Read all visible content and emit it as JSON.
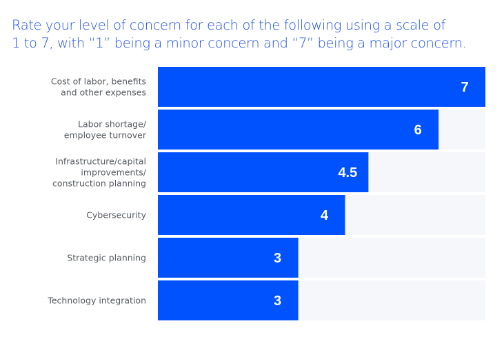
{
  "chart_data": {
    "type": "bar",
    "orientation": "horizontal",
    "title_lines": [
      "Rate your level of concern for each of the following using a scale of",
      "1 to 7, with “1” being a minor concern and “7” being a major concern."
    ],
    "categories": [
      [
        "Cost of labor, benefits",
        "and other expenses"
      ],
      [
        "Labor shortage/",
        "employee turnover"
      ],
      [
        "Infrastructure/capital",
        "improvements/",
        "construction planning"
      ],
      [
        "Cybersecurity"
      ],
      [
        "Strategic planning"
      ],
      [
        "Technology integration"
      ]
    ],
    "values": [
      7,
      6,
      4.5,
      4,
      3,
      3
    ],
    "value_labels": [
      "7",
      "6",
      "4.5",
      "4",
      "3",
      "3"
    ],
    "xlim": [
      0,
      7
    ],
    "xlabel": "",
    "ylabel": "",
    "grid": false,
    "legend": "none",
    "colors": {
      "bar": "#0052ff",
      "track": "#f6f7fa",
      "title": "#1f4fe0",
      "label": "#555a60"
    }
  }
}
